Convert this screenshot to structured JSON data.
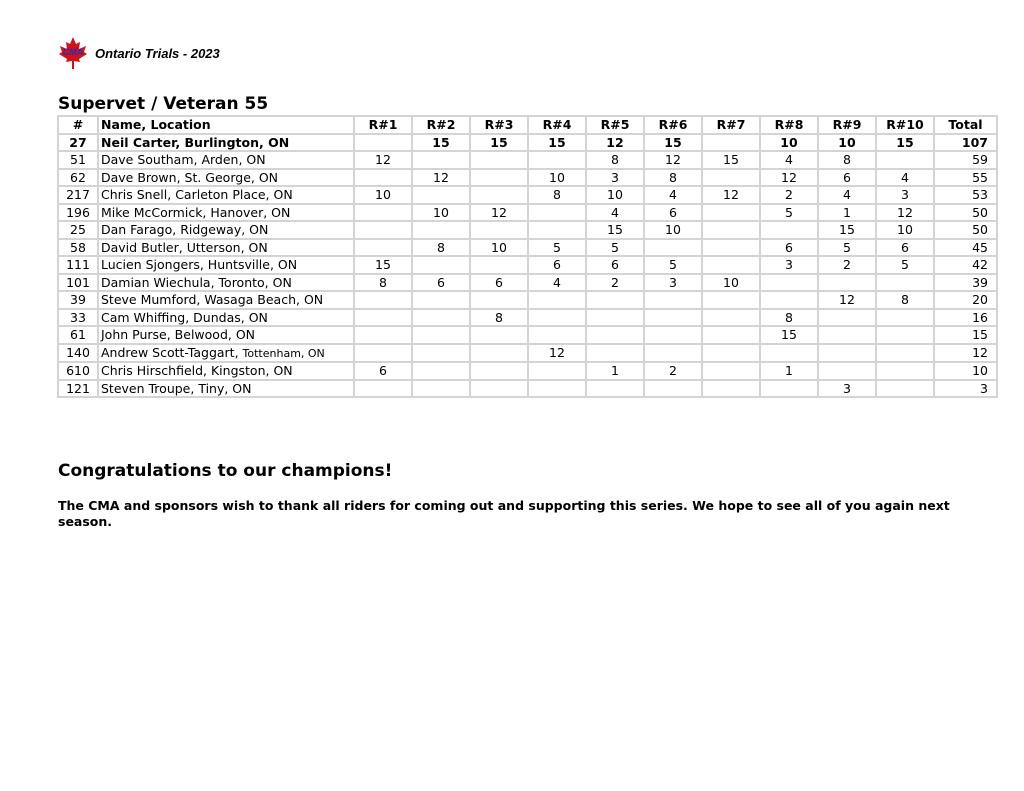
{
  "header": {
    "logo_text": "CMA",
    "title": "Ontario Trials - 2023"
  },
  "section_title": "Supervet / Veteran 55",
  "table": {
    "columns": [
      "#",
      "Name, Location",
      "R#1",
      "R#2",
      "R#3",
      "R#4",
      "R#5",
      "R#6",
      "R#7",
      "R#8",
      "R#9",
      "R#10",
      "Total"
    ],
    "rows": [
      {
        "num": "27",
        "name": "Neil Carter, Burlington, ON",
        "loc_small": "",
        "r": [
          "",
          "15",
          "15",
          "15",
          "12",
          "15",
          "",
          "10",
          "10",
          "15"
        ],
        "total": "107"
      },
      {
        "num": "51",
        "name": "Dave Southam, Arden, ON",
        "loc_small": "",
        "r": [
          "12",
          "",
          "",
          "",
          "8",
          "12",
          "15",
          "4",
          "8",
          ""
        ],
        "total": "59"
      },
      {
        "num": "62",
        "name": "Dave Brown, St. George, ON",
        "loc_small": "",
        "r": [
          "",
          "12",
          "",
          "10",
          "3",
          "8",
          "",
          "12",
          "6",
          "4"
        ],
        "total": "55"
      },
      {
        "num": "217",
        "name": "Chris Snell, Carleton Place, ON",
        "loc_small": "",
        "r": [
          "10",
          "",
          "",
          "8",
          "10",
          "4",
          "12",
          "2",
          "4",
          "3"
        ],
        "total": "53"
      },
      {
        "num": "196",
        "name": "Mike McCormick, Hanover, ON",
        "loc_small": "",
        "r": [
          "",
          "10",
          "12",
          "",
          "4",
          "6",
          "",
          "5",
          "1",
          "12"
        ],
        "total": "50"
      },
      {
        "num": "25",
        "name": "Dan Farago, Ridgeway, ON",
        "loc_small": "",
        "r": [
          "",
          "",
          "",
          "",
          "15",
          "10",
          "",
          "",
          "15",
          "10"
        ],
        "total": "50"
      },
      {
        "num": "58",
        "name": "David Butler, Utterson, ON",
        "loc_small": "",
        "r": [
          "",
          "8",
          "10",
          "5",
          "5",
          "",
          "",
          "6",
          "5",
          "6"
        ],
        "total": "45"
      },
      {
        "num": "111",
        "name": "Lucien Sjongers, Huntsville, ON",
        "loc_small": "",
        "r": [
          "15",
          "",
          "",
          "6",
          "6",
          "5",
          "",
          "3",
          "2",
          "5"
        ],
        "total": "42"
      },
      {
        "num": "101",
        "name": "Damian Wiechula, Toronto, ON",
        "loc_small": "",
        "r": [
          "8",
          "6",
          "6",
          "4",
          "2",
          "3",
          "10",
          "",
          "",
          ""
        ],
        "total": "39"
      },
      {
        "num": "39",
        "name": "Steve Mumford, Wasaga Beach, ON",
        "loc_small": "",
        "r": [
          "",
          "",
          "",
          "",
          "",
          "",
          "",
          "",
          "12",
          "8"
        ],
        "total": "20"
      },
      {
        "num": "33",
        "name": "Cam Whiffing, Dundas, ON",
        "loc_small": "",
        "r": [
          "",
          "",
          "8",
          "",
          "",
          "",
          "",
          "8",
          "",
          ""
        ],
        "total": "16"
      },
      {
        "num": "61",
        "name": "John Purse, Belwood, ON",
        "loc_small": "",
        "r": [
          "",
          "",
          "",
          "",
          "",
          "",
          "",
          "15",
          "",
          ""
        ],
        "total": "15"
      },
      {
        "num": "140",
        "name": "Andrew Scott-Taggart, ",
        "loc_small": "Tottenham, ON",
        "r": [
          "",
          "",
          "",
          "12",
          "",
          "",
          "",
          "",
          "",
          ""
        ],
        "total": "12"
      },
      {
        "num": "610",
        "name": "Chris Hirschfield, Kingston, ON",
        "loc_small": "",
        "r": [
          "6",
          "",
          "",
          "",
          "1",
          "2",
          "",
          "1",
          "",
          ""
        ],
        "total": "10"
      },
      {
        "num": "121",
        "name": "Steven Troupe, Tiny, ON",
        "loc_small": "",
        "r": [
          "",
          "",
          "",
          "",
          "",
          "",
          "",
          "",
          "3",
          ""
        ],
        "total": "3"
      }
    ]
  },
  "congrats": "Congratulations to our champions!",
  "thanks": "The CMA and sponsors wish to thank all riders for coming out and supporting this series. We hope to see all of you again next season.",
  "colors": {
    "logo_red": "#d0131a",
    "logo_blue": "#2b2bb8",
    "grid": "#d4d4d4"
  }
}
